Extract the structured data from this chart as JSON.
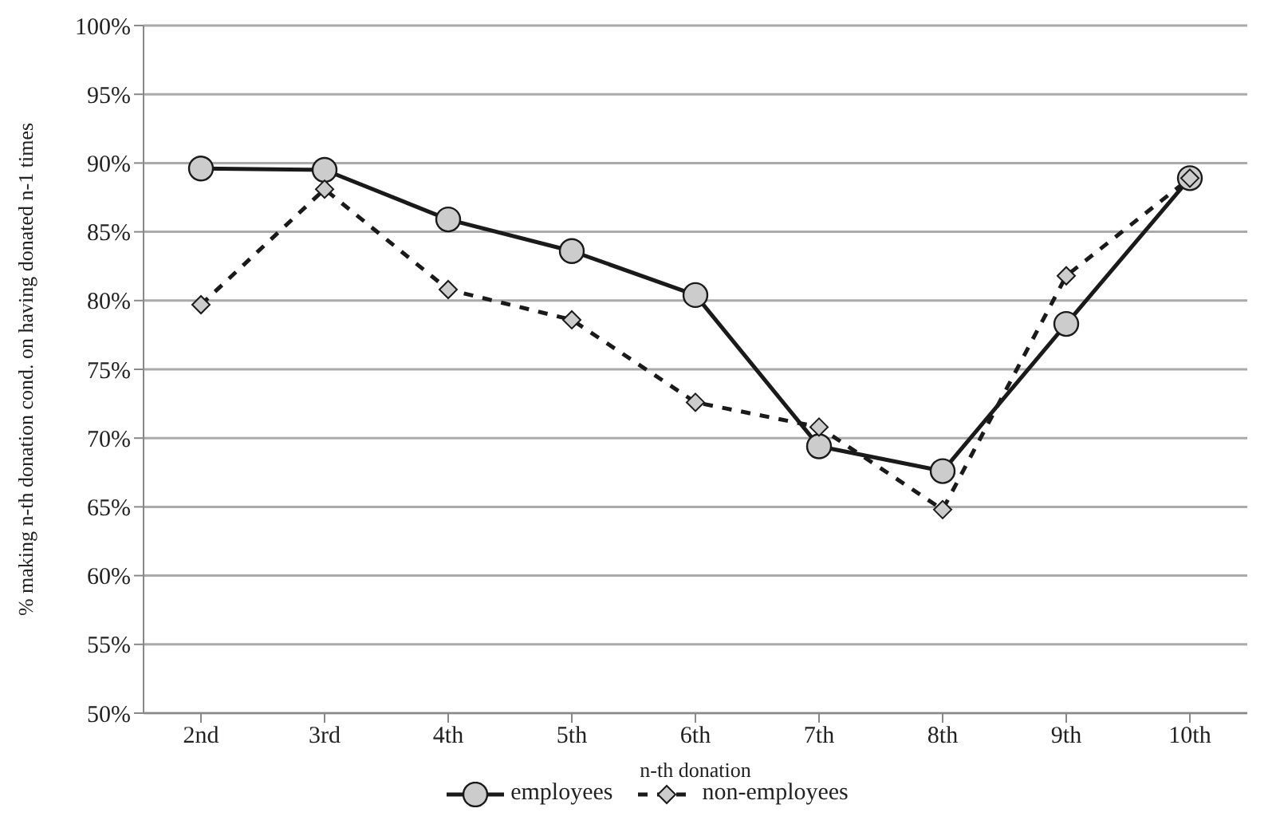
{
  "chart_data": {
    "type": "line",
    "xlabel": "n-th donation",
    "ylabel": "% making n-th donation cond. on having donated n-1 times",
    "categories": [
      "2nd",
      "3rd",
      "4th",
      "5th",
      "6th",
      "7th",
      "8th",
      "9th",
      "10th"
    ],
    "series": [
      {
        "name": "employees",
        "color": "#1a1a1a",
        "marker": "circle",
        "line_style": "solid",
        "values": [
          89.6,
          89.5,
          85.9,
          83.6,
          80.4,
          69.4,
          67.6,
          78.3,
          88.9
        ]
      },
      {
        "name": "non-employees",
        "color": "#1a1a1a",
        "marker": "diamond",
        "line_style": "dashed",
        "values": [
          79.7,
          88.1,
          80.8,
          78.6,
          72.6,
          70.8,
          64.8,
          81.8,
          88.9
        ]
      }
    ],
    "ylim": [
      50,
      100
    ],
    "yticks": [
      {
        "value": 50,
        "label": "50%"
      },
      {
        "value": 55,
        "label": "55%"
      },
      {
        "value": 60,
        "label": "60%"
      },
      {
        "value": 65,
        "label": "65%"
      },
      {
        "value": 70,
        "label": "70%"
      },
      {
        "value": 75,
        "label": "75%"
      },
      {
        "value": 80,
        "label": "80%"
      },
      {
        "value": 85,
        "label": "85%"
      },
      {
        "value": 90,
        "label": "90%"
      },
      {
        "value": 95,
        "label": "95%"
      },
      {
        "value": 100,
        "label": "100%"
      }
    ],
    "grid": "y",
    "legend": "bottom"
  }
}
